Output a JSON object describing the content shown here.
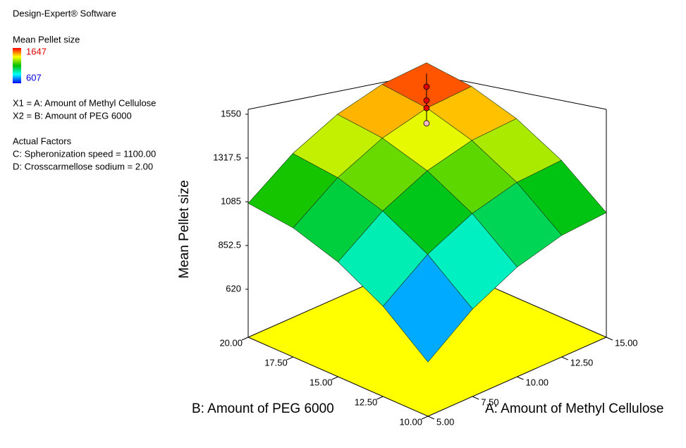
{
  "chart_data": {
    "type": "surface",
    "software": "Design-Expert® Software",
    "legend_title": "Mean Pellet size",
    "color_range": {
      "max": 1647,
      "min": 607
    },
    "factor_defs": [
      "X1 = A: Amount of Methyl Cellulose",
      "X2 = B: Amount of PEG 6000"
    ],
    "actual_factors_title": "Actual Factors",
    "actual_factors": [
      "C: Spheronization speed = 1100.00",
      "D: Crosscarmellose sodium  = 2.00"
    ],
    "x_label": "A: Amount of Methyl Cellulose",
    "y_label": "B: Amount of PEG 6000",
    "z_label": "Mean Pellet size",
    "x": [
      5,
      7.5,
      10,
      12.5,
      15
    ],
    "y": [
      10,
      12.5,
      15,
      17.5,
      20
    ],
    "z": [
      [
        607,
        772,
        897,
        982,
        1027
      ],
      [
        785,
        959,
        1093,
        1188,
        1242
      ],
      [
        922,
        1106,
        1250,
        1353,
        1417
      ],
      [
        1020,
        1213,
        1366,
        1479,
        1552
      ],
      [
        1077,
        1280,
        1442,
        1565,
        1647
      ]
    ],
    "xlim": [
      5,
      15
    ],
    "ylim": [
      10,
      20
    ],
    "zlim": [
      365,
      1576
    ],
    "xticks": [
      {
        "value": 5,
        "label": "5.00"
      },
      {
        "value": 7.5,
        "label": "7.50"
      },
      {
        "value": 10,
        "label": "10.00"
      },
      {
        "value": 12.5,
        "label": "12.50"
      },
      {
        "value": 15,
        "label": "15.00"
      }
    ],
    "yticks": [
      {
        "value": 10,
        "label": "10.00"
      },
      {
        "value": 12.5,
        "label": "12.50"
      },
      {
        "value": 15,
        "label": "15.00"
      },
      {
        "value": 17.5,
        "label": "17.50"
      },
      {
        "value": 20,
        "label": "20.00"
      }
    ],
    "zticks": [
      620,
      852.5,
      1085,
      1317.5,
      1550
    ],
    "floor_color": "#ffff00",
    "design_points": {
      "x": [
        15,
        15,
        15,
        15
      ],
      "y": [
        20,
        20,
        20,
        20
      ],
      "z": [
        1490,
        1400,
        1350,
        1250
      ],
      "colors": [
        "#e00000",
        "#e00000",
        "#e00000",
        "#f4b8c8"
      ]
    }
  }
}
